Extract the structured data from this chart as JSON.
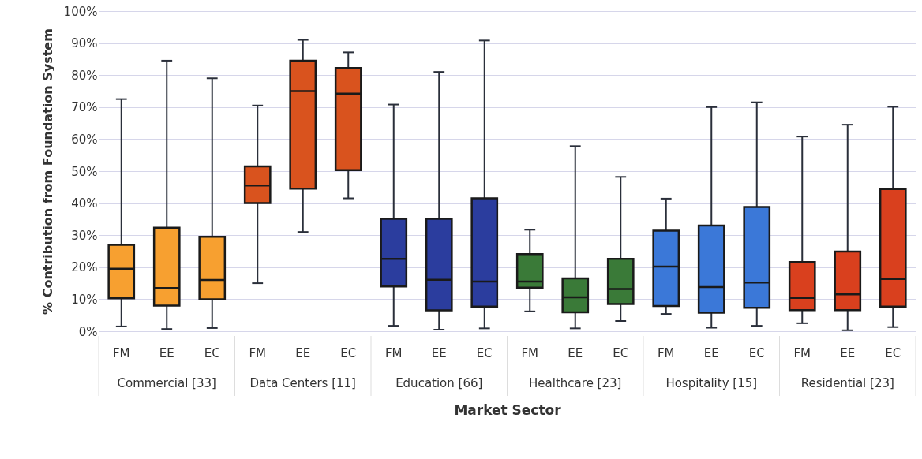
{
  "chart_data": {
    "type": "box",
    "ylabel": "% Contribution from Foundation System",
    "xlabel": "Market Sector",
    "ylim": [
      0,
      100
    ],
    "yticks": [
      {
        "value": 0,
        "label": "0%"
      },
      {
        "value": 10,
        "label": "10%"
      },
      {
        "value": 20,
        "label": "20%"
      },
      {
        "value": 30,
        "label": "30%"
      },
      {
        "value": 40,
        "label": "40%"
      },
      {
        "value": 50,
        "label": "50%"
      },
      {
        "value": 60,
        "label": "60%"
      },
      {
        "value": 70,
        "label": "70%"
      },
      {
        "value": 80,
        "label": "80%"
      },
      {
        "value": 90,
        "label": "90%"
      },
      {
        "value": 100,
        "label": "100%"
      }
    ],
    "grid": "y",
    "legend": false,
    "categories": [
      "FM",
      "EE",
      "EC",
      "FM",
      "EE",
      "EC",
      "FM",
      "EE",
      "EC",
      "FM",
      "EE",
      "EC",
      "FM",
      "EE",
      "EC",
      "FM",
      "EE",
      "EC"
    ],
    "colors": [
      "#f7a030",
      "#f7a030",
      "#f7a030",
      "#d9531e",
      "#d9531e",
      "#d9531e",
      "#2b3d9e",
      "#2b3d9e",
      "#2b3d9e",
      "#3a7a38",
      "#3a7a38",
      "#3a7a38",
      "#3b78d8",
      "#3b78d8",
      "#3b78d8",
      "#d9401e",
      "#d9401e",
      "#d9401e"
    ],
    "annotations": [
      "Commercial [33]",
      "Data Centers [11]",
      "Education [66]",
      "Healthcare [23]",
      "Hospitality [15]",
      "Residential [23]"
    ],
    "boxes": [
      {
        "low": 1.5,
        "q1": 10.3,
        "median": 19.5,
        "q3": 27,
        "high": 72.5
      },
      {
        "low": 0.7,
        "q1": 8,
        "median": 13.5,
        "q3": 32.3,
        "high": 84.5
      },
      {
        "low": 1,
        "q1": 10,
        "median": 16,
        "q3": 29.5,
        "high": 79
      },
      {
        "low": 15,
        "q1": 40,
        "median": 45.5,
        "q3": 51.5,
        "high": 70.5
      },
      {
        "low": 31,
        "q1": 44.5,
        "median": 75,
        "q3": 84.5,
        "high": 91
      },
      {
        "low": 41.5,
        "q1": 50.3,
        "median": 74.2,
        "q3": 82.2,
        "high": 87.1
      },
      {
        "low": 1.7,
        "q1": 14,
        "median": 22.6,
        "q3": 35.1,
        "high": 70.8
      },
      {
        "low": 0.5,
        "q1": 6.5,
        "median": 16.1,
        "q3": 35.1,
        "high": 81
      },
      {
        "low": 0.9,
        "q1": 7.7,
        "median": 15.5,
        "q3": 41.5,
        "high": 90.8
      },
      {
        "low": 6.2,
        "q1": 13.6,
        "median": 15.5,
        "q3": 24.1,
        "high": 31.7
      },
      {
        "low": 0.9,
        "q1": 5.9,
        "median": 10.6,
        "q3": 16.5,
        "high": 57.8
      },
      {
        "low": 3.2,
        "q1": 8.5,
        "median": 13.2,
        "q3": 22.6,
        "high": 48.2
      },
      {
        "low": 5.4,
        "q1": 7.9,
        "median": 20.2,
        "q3": 31.4,
        "high": 41.4
      },
      {
        "low": 1.1,
        "q1": 5.8,
        "median": 13.8,
        "q3": 33,
        "high": 70
      },
      {
        "low": 1.7,
        "q1": 7.3,
        "median": 15.2,
        "q3": 38.8,
        "high": 71.5
      },
      {
        "low": 2.5,
        "q1": 6.6,
        "median": 10.4,
        "q3": 21.6,
        "high": 60.8
      },
      {
        "low": 0.3,
        "q1": 6.6,
        "median": 11.5,
        "q3": 24.9,
        "high": 64.5
      },
      {
        "low": 1.3,
        "q1": 7.7,
        "median": 16.3,
        "q3": 44.4,
        "high": 70.1
      }
    ]
  }
}
